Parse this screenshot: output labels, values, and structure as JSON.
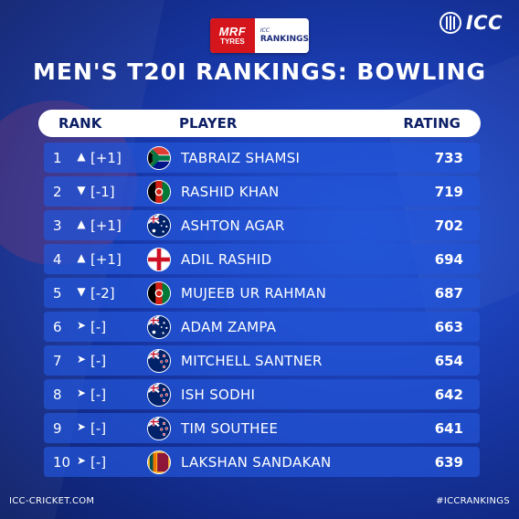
{
  "sponsor": {
    "mrf_line1": "MRF",
    "mrf_line2": "TYRES",
    "icc_line1": "ICC",
    "icc_line2": "RANKINGS"
  },
  "logo": {
    "text": "ICC"
  },
  "title": "MEN'S T20I RANKINGS: BOWLING",
  "header": {
    "rank": "RANK",
    "player": "PLAYER",
    "rating": "RATING"
  },
  "rows": [
    {
      "rank": "1",
      "move": "up",
      "change": "[+1]",
      "flag": "south-africa",
      "player": "TABRAIZ SHAMSI",
      "rating": "733"
    },
    {
      "rank": "2",
      "move": "down",
      "change": "[-1]",
      "flag": "afghanistan",
      "player": "RASHID KHAN",
      "rating": "719"
    },
    {
      "rank": "3",
      "move": "up",
      "change": "[+1]",
      "flag": "australia",
      "player": "ASHTON AGAR",
      "rating": "702"
    },
    {
      "rank": "4",
      "move": "up",
      "change": "[+1]",
      "flag": "england",
      "player": "ADIL RASHID",
      "rating": "694"
    },
    {
      "rank": "5",
      "move": "down",
      "change": "[-2]",
      "flag": "afghanistan",
      "player": "MUJEEB UR RAHMAN",
      "rating": "687"
    },
    {
      "rank": "6",
      "move": "same",
      "change": "[-]",
      "flag": "australia",
      "player": "ADAM ZAMPA",
      "rating": "663"
    },
    {
      "rank": "7",
      "move": "same",
      "change": "[-]",
      "flag": "new-zealand",
      "player": "MITCHELL SANTNER",
      "rating": "654"
    },
    {
      "rank": "8",
      "move": "same",
      "change": "[-]",
      "flag": "new-zealand",
      "player": "ISH SODHI",
      "rating": "642"
    },
    {
      "rank": "9",
      "move": "same",
      "change": "[-]",
      "flag": "new-zealand",
      "player": "TIM SOUTHEE",
      "rating": "641"
    },
    {
      "rank": "10",
      "move": "same",
      "change": "[-]",
      "flag": "sri-lanka",
      "player": "LAKSHAN SANDAKAN",
      "rating": "639"
    }
  ],
  "footer": {
    "left": "ICC-CRICKET.COM",
    "right": "#ICCRANKINGS"
  },
  "colors": {
    "background": "#1a3cb0",
    "row": "#2355d7",
    "header_text": "#0d1f66",
    "mrf_red": "#d4161c"
  }
}
